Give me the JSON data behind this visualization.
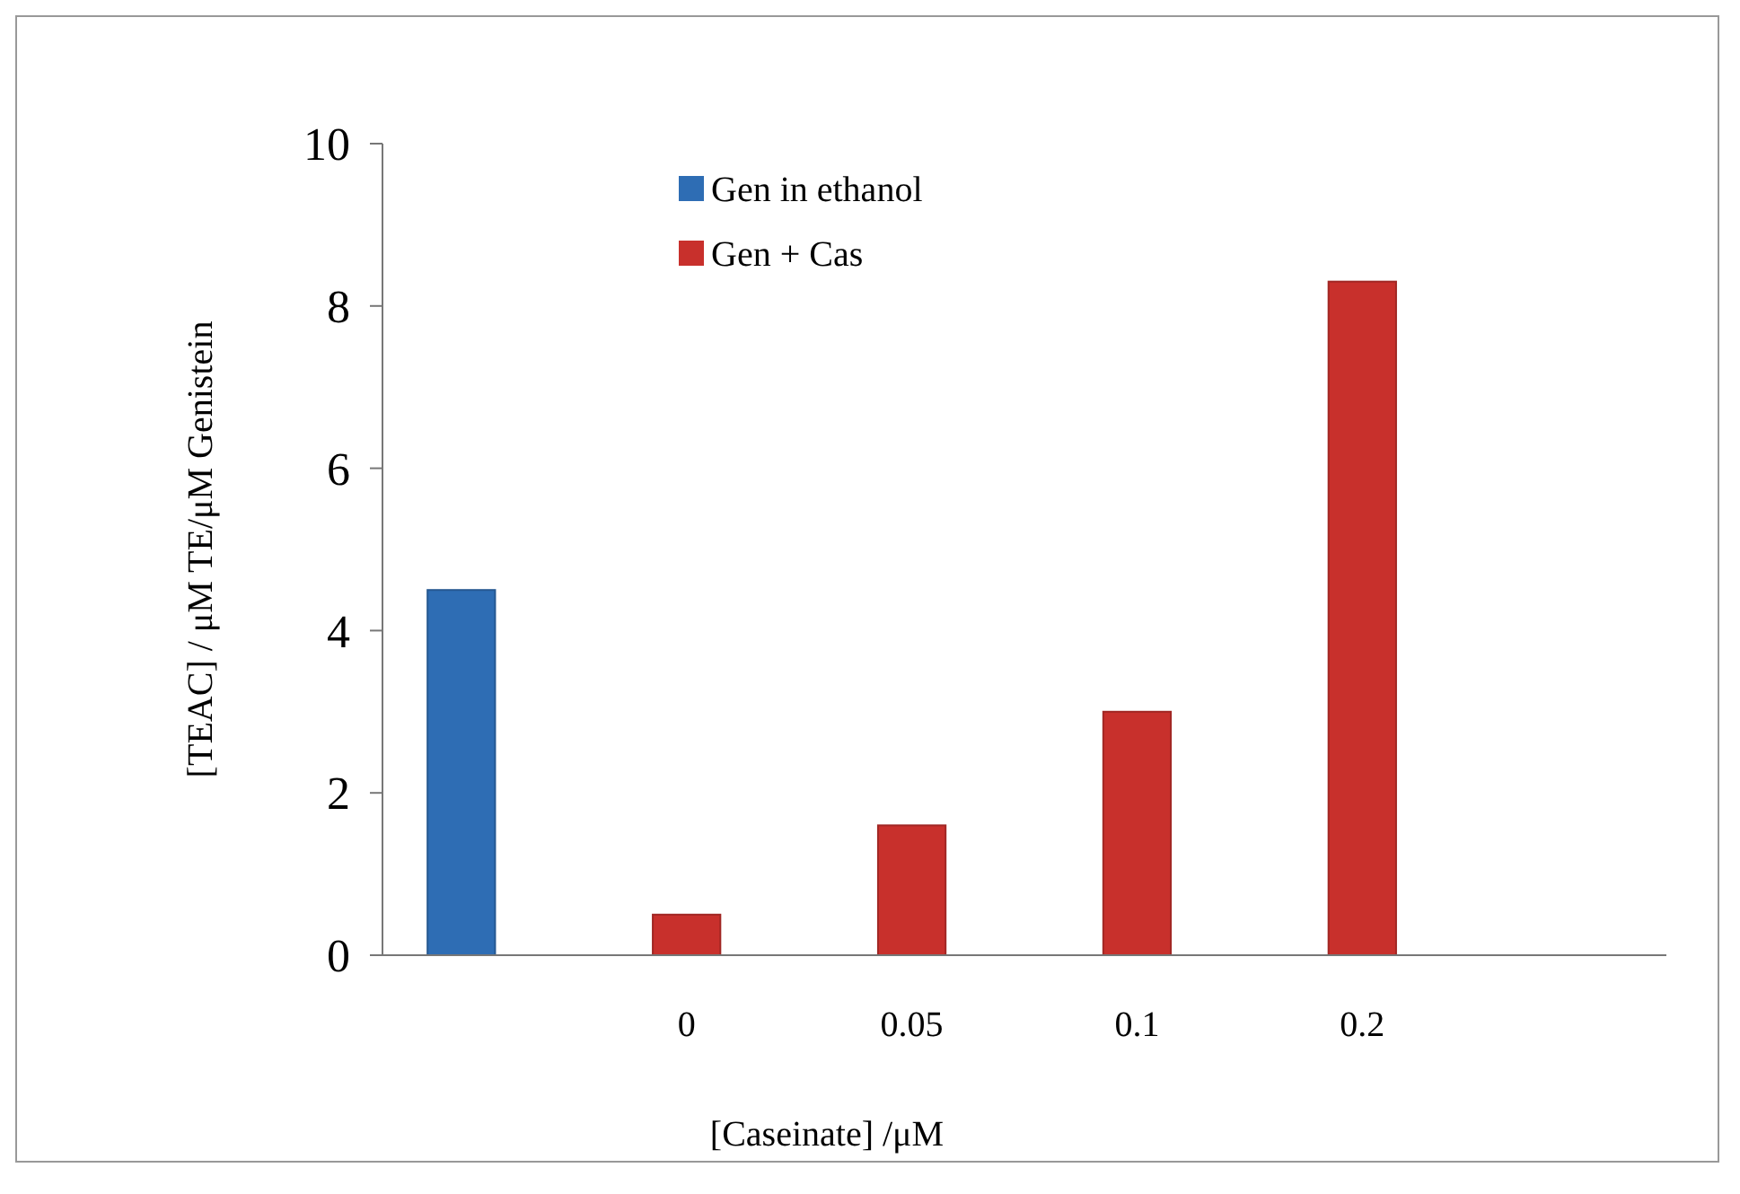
{
  "chart_data": {
    "type": "bar",
    "xlabel": "[Caseinate] /μM",
    "ylabel": "[TEAC] /  μM TE/μM Genistein",
    "categories": [
      null,
      "0",
      "0.05",
      "0.1",
      "0.2"
    ],
    "series": [
      {
        "name": "Gen in ethanol",
        "color": "#2e6db4",
        "values": [
          4.5,
          null,
          null,
          null,
          null
        ]
      },
      {
        "name": "Gen + Cas",
        "color": "#c8302c",
        "values": [
          null,
          0.5,
          1.6,
          3.0,
          8.3
        ]
      }
    ],
    "ylim": [
      0,
      10
    ],
    "yticks": [
      0,
      2,
      4,
      6,
      8,
      10
    ],
    "grid": false,
    "legend": "top left"
  }
}
